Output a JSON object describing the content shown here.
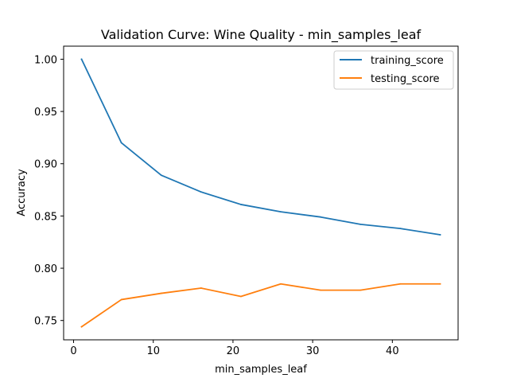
{
  "chart_data": {
    "type": "line",
    "title": "Validation Curve: Wine Quality - min_samples_leaf",
    "xlabel": "min_samples_leaf",
    "ylabel": "Accuracy",
    "x": [
      1,
      6,
      11,
      16,
      21,
      26,
      31,
      36,
      41,
      46
    ],
    "xlim": [
      -1.25,
      48.25
    ],
    "ylim": [
      0.7315,
      1.0125
    ],
    "xticks": [
      0,
      10,
      20,
      30,
      40
    ],
    "xtick_labels": [
      "0",
      "10",
      "20",
      "30",
      "40"
    ],
    "yticks": [
      0.75,
      0.8,
      0.85,
      0.9,
      0.95,
      1.0
    ],
    "ytick_labels": [
      "0.75",
      "0.80",
      "0.85",
      "0.90",
      "0.95",
      "1.00"
    ],
    "grid": false,
    "legend_position": "top-right",
    "series": [
      {
        "name": "training_score",
        "color": "#1f77b4",
        "values": [
          1.0,
          0.92,
          0.889,
          0.873,
          0.861,
          0.854,
          0.849,
          0.842,
          0.838,
          0.832
        ]
      },
      {
        "name": "testing_score",
        "color": "#ff7f0e",
        "values": [
          0.744,
          0.77,
          0.776,
          0.781,
          0.773,
          0.785,
          0.779,
          0.779,
          0.785,
          0.785
        ]
      }
    ]
  }
}
